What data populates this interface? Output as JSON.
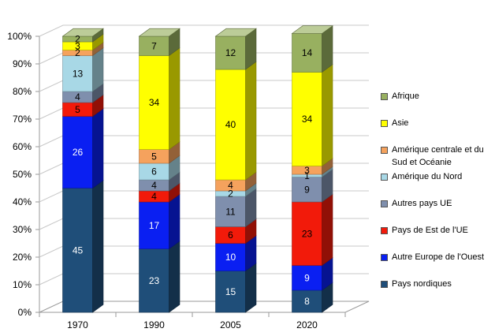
{
  "chart_data": {
    "type": "bar",
    "stacked": true,
    "three_d": true,
    "categories": [
      "1970",
      "1990",
      "2005",
      "2020"
    ],
    "ylim": [
      0,
      100
    ],
    "yticks": [
      "0%",
      "10%",
      "20%",
      "30%",
      "40%",
      "50%",
      "60%",
      "70%",
      "80%",
      "90%",
      "100%"
    ],
    "grid": true,
    "legend_position": "right",
    "series": [
      {
        "name": "Pays nordiques",
        "color": "#1f4e79",
        "label_color": "#ffffff",
        "values": [
          45,
          23,
          15,
          8
        ]
      },
      {
        "name": "Autre Europe de l'Ouest",
        "color": "#0a1ff2",
        "label_color": "#ffffff",
        "values": [
          26,
          17,
          10,
          9
        ]
      },
      {
        "name": "Pays de Est de l'UE",
        "color": "#f21a0a",
        "label_color": "#000000",
        "values": [
          5,
          4,
          6,
          23
        ]
      },
      {
        "name": "Autres pays UE",
        "color": "#7f8fad",
        "label_color": "#000000",
        "values": [
          4,
          4,
          11,
          9
        ]
      },
      {
        "name": "Amérique du Nord",
        "color": "#a8d8e6",
        "label_color": "#000000",
        "values": [
          13,
          6,
          2,
          1
        ]
      },
      {
        "name": "Amérique centrale et du Sud et Océanie",
        "color": "#f5a25d",
        "label_color": "#000000",
        "values": [
          2,
          5,
          4,
          3
        ]
      },
      {
        "name": "Asie",
        "color": "#ffff00",
        "label_color": "#000000",
        "values": [
          3,
          34,
          40,
          34
        ]
      },
      {
        "name": "Afrique",
        "color": "#98b060",
        "label_color": "#000000",
        "values": [
          2,
          7,
          12,
          14
        ]
      }
    ]
  }
}
